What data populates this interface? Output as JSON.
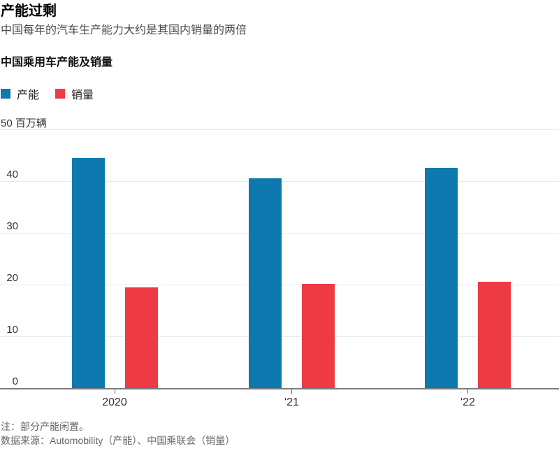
{
  "header": {
    "title": "产能过剩",
    "subtitle": "中国每年的汽车生产能力大约是其国内销量的两倍"
  },
  "chart": {
    "heading": "中国乘用车产能及销量"
  },
  "legend": {
    "items": [
      {
        "key": "capacity",
        "label": "产能",
        "color": "#0d79af"
      },
      {
        "key": "sales",
        "label": "销量",
        "color": "#ee3b43"
      }
    ]
  },
  "chart_data": {
    "type": "bar",
    "title": "中国乘用车产能及销量",
    "categories": [
      "2020",
      "'21",
      "'22"
    ],
    "series": [
      {
        "key": "capacity",
        "name": "产能",
        "color": "#0d79af",
        "values": [
          44.4,
          40.5,
          42.6
        ]
      },
      {
        "key": "sales",
        "name": "销量",
        "color": "#ee3b43",
        "values": [
          19.4,
          20.2,
          20.6
        ]
      }
    ],
    "ylabel": "百万辆",
    "y_axis_top_label": "50 百万辆",
    "yticks": [
      0,
      10,
      20,
      30,
      40,
      50
    ],
    "ylim": [
      0,
      50
    ],
    "xlabel": "",
    "grid": "horizontal",
    "legend_position": "top-left"
  },
  "footer": {
    "note": "注：部分产能闲置。",
    "source": "数据来源：Automobility（产能）、中国乘联会（销量）"
  },
  "colors": {
    "capacity_blue": "#0d79af",
    "sales_red": "#ee3b43",
    "gridline": "#e9e9e9",
    "axis_line": "#7d7d7d",
    "tick": "#666666",
    "title_text": "#000000",
    "subtitle_text": "#4a4a4a",
    "axis_label_text": "#333333",
    "footnote_text": "#666666"
  }
}
